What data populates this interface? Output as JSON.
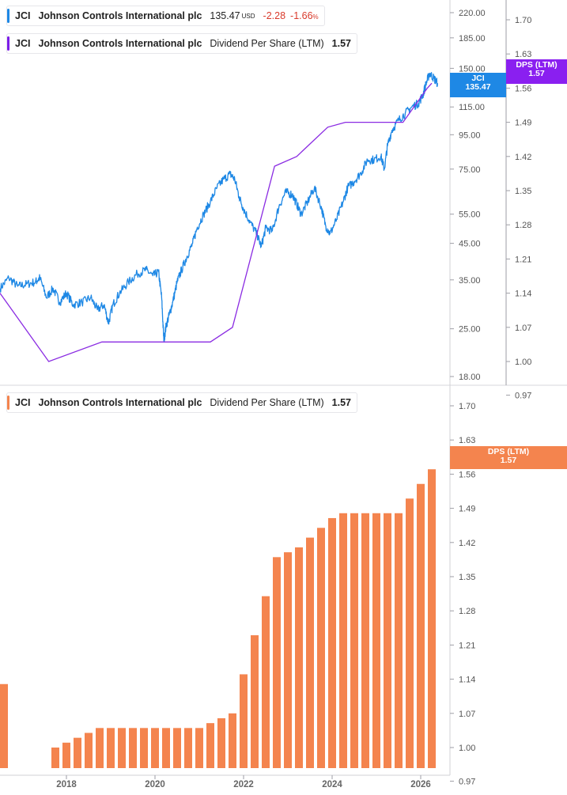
{
  "top_legend": {
    "price": {
      "ticker": "JCI",
      "company": "Johnson Controls International plc",
      "value": "135.47",
      "unit": "USD",
      "change": "-2.28",
      "change_pct": "-1.66",
      "pct_symbol": "%",
      "color": "#1e88e5"
    },
    "dps": {
      "ticker": "JCI",
      "company": "Johnson Controls International plc",
      "metric": "Dividend Per Share (LTM)",
      "value": "1.57",
      "color": "#7c1ee8"
    }
  },
  "bottom_legend": {
    "ticker": "JCI",
    "company": "Johnson Controls International plc",
    "metric": "Dividend Per Share (LTM)",
    "value": "1.57",
    "color": "#f4844e"
  },
  "tags": {
    "price": {
      "name": "JCI",
      "value": "135.47",
      "color": "#1e88e5"
    },
    "dps_top": {
      "name": "DPS (LTM)",
      "value": "1.57",
      "color": "#8a1ff0"
    },
    "dps_bottom": {
      "name": "DPS (LTM)",
      "value": "1.57",
      "color": "#f4844e"
    }
  },
  "chart_data": [
    {
      "type": "line",
      "scale": "log",
      "axis": "left-inner",
      "ticks": [
        "220.00",
        "185.00",
        "150.00",
        "115.00",
        "95.00",
        "75.00",
        "55.00",
        "45.00",
        "35.00",
        "25.00",
        "18.00"
      ],
      "ylim": [
        17.5,
        245
      ],
      "x_range": [
        2016.5,
        2026.5
      ],
      "series": [
        {
          "name": "JCI",
          "color": "#1e88e5",
          "points": [
            [
              2016.5,
              33.0
            ],
            [
              2016.7,
              35.5
            ],
            [
              2016.9,
              33.5
            ],
            [
              2017.1,
              34.0
            ],
            [
              2017.3,
              34.5
            ],
            [
              2017.4,
              35.5
            ],
            [
              2017.55,
              31.0
            ],
            [
              2017.7,
              33.0
            ],
            [
              2017.85,
              30.0
            ],
            [
              2018.0,
              32.0
            ],
            [
              2018.15,
              29.5
            ],
            [
              2018.35,
              30.0
            ],
            [
              2018.55,
              31.0
            ],
            [
              2018.7,
              28.5
            ],
            [
              2018.85,
              29.5
            ],
            [
              2018.95,
              26.0
            ],
            [
              2019.05,
              29.5
            ],
            [
              2019.2,
              32.0
            ],
            [
              2019.4,
              34.5
            ],
            [
              2019.6,
              36.5
            ],
            [
              2019.8,
              37.5
            ],
            [
              2019.95,
              36.0
            ],
            [
              2020.08,
              37.0
            ],
            [
              2020.15,
              31.0
            ],
            [
              2020.2,
              23.0
            ],
            [
              2020.25,
              25.5
            ],
            [
              2020.32,
              27.5
            ],
            [
              2020.4,
              30.0
            ],
            [
              2020.5,
              34.5
            ],
            [
              2020.6,
              37.5
            ],
            [
              2020.72,
              41.0
            ],
            [
              2020.85,
              45.0
            ],
            [
              2020.95,
              50.0
            ],
            [
              2021.1,
              55.0
            ],
            [
              2021.25,
              60.0
            ],
            [
              2021.4,
              66.0
            ],
            [
              2021.55,
              70.0
            ],
            [
              2021.7,
              72.5
            ],
            [
              2021.8,
              70.0
            ],
            [
              2021.9,
              62.0
            ],
            [
              2022.0,
              57.0
            ],
            [
              2022.15,
              52.0
            ],
            [
              2022.3,
              48.0
            ],
            [
              2022.4,
              44.0
            ],
            [
              2022.5,
              50.0
            ],
            [
              2022.65,
              49.0
            ],
            [
              2022.8,
              58.0
            ],
            [
              2022.95,
              64.0
            ],
            [
              2023.1,
              63.0
            ],
            [
              2023.2,
              59.0
            ],
            [
              2023.3,
              55.0
            ],
            [
              2023.45,
              60.0
            ],
            [
              2023.6,
              66.0
            ],
            [
              2023.75,
              58.0
            ],
            [
              2023.85,
              51.0
            ],
            [
              2023.95,
              48.0
            ],
            [
              2024.1,
              53.0
            ],
            [
              2024.25,
              60.0
            ],
            [
              2024.35,
              66.0
            ],
            [
              2024.5,
              69.0
            ],
            [
              2024.65,
              73.0
            ],
            [
              2024.8,
              80.0
            ],
            [
              2024.95,
              80.0
            ],
            [
              2025.1,
              82.0
            ],
            [
              2025.18,
              75.0
            ],
            [
              2025.25,
              88.0
            ],
            [
              2025.35,
              98.0
            ],
            [
              2025.5,
              105.0
            ],
            [
              2025.65,
              110.0
            ],
            [
              2025.8,
              115.0
            ],
            [
              2025.95,
              118.0
            ],
            [
              2026.05,
              125.0
            ],
            [
              2026.12,
              135.0
            ],
            [
              2026.2,
              145.0
            ],
            [
              2026.3,
              140.0
            ],
            [
              2026.38,
              135.47
            ]
          ]
        }
      ]
    },
    {
      "type": "line",
      "axis": "right",
      "ticks": [
        "1.70",
        "1.63",
        "1.56",
        "1.49",
        "1.42",
        "1.35",
        "1.28",
        "1.21",
        "1.14",
        "1.07",
        "1.00",
        "0.97"
      ],
      "ylim": [
        0.97,
        1.7
      ],
      "x_range": [
        2016.5,
        2026.5
      ],
      "series": [
        {
          "name": "Dividend Per Share (LTM)",
          "color": "#8a2be2",
          "points": [
            [
              2016.5,
              1.14
            ],
            [
              2017.6,
              1.0
            ],
            [
              2018.8,
              1.04
            ],
            [
              2020.5,
              1.04
            ],
            [
              2021.25,
              1.04
            ],
            [
              2021.75,
              1.07
            ],
            [
              2022.7,
              1.4
            ],
            [
              2023.2,
              1.42
            ],
            [
              2023.9,
              1.48
            ],
            [
              2024.3,
              1.49
            ],
            [
              2025.0,
              1.49
            ],
            [
              2025.6,
              1.49
            ],
            [
              2026.15,
              1.56
            ],
            [
              2026.25,
              1.57
            ]
          ]
        }
      ]
    },
    {
      "type": "bar",
      "axis": "right",
      "ticks": [
        "1.70",
        "1.63",
        "1.56",
        "1.49",
        "1.42",
        "1.35",
        "1.28",
        "1.21",
        "1.14",
        "1.07",
        "1.00",
        "0.97"
      ],
      "ylim": [
        0.97,
        1.7
      ],
      "x_ticks": [
        "2018",
        "2020",
        "2022",
        "2024",
        "2026"
      ],
      "x_tick_values": [
        2018,
        2020,
        2022,
        2024,
        2026
      ],
      "x_range": [
        2016.5,
        2026.5
      ],
      "series": [
        {
          "name": "Dividend Per Share (LTM)",
          "color": "#f4844e",
          "points": [
            [
              2016.5,
              1.13
            ],
            [
              2017.75,
              1.0
            ],
            [
              2018.0,
              1.01
            ],
            [
              2018.25,
              1.02
            ],
            [
              2018.5,
              1.03
            ],
            [
              2018.75,
              1.04
            ],
            [
              2019.0,
              1.04
            ],
            [
              2019.25,
              1.04
            ],
            [
              2019.5,
              1.04
            ],
            [
              2019.75,
              1.04
            ],
            [
              2020.0,
              1.04
            ],
            [
              2020.25,
              1.04
            ],
            [
              2020.5,
              1.04
            ],
            [
              2020.75,
              1.04
            ],
            [
              2021.0,
              1.04
            ],
            [
              2021.25,
              1.05
            ],
            [
              2021.5,
              1.06
            ],
            [
              2021.75,
              1.07
            ],
            [
              2022.0,
              1.15
            ],
            [
              2022.25,
              1.23
            ],
            [
              2022.5,
              1.31
            ],
            [
              2022.75,
              1.39
            ],
            [
              2023.0,
              1.4
            ],
            [
              2023.25,
              1.41
            ],
            [
              2023.5,
              1.43
            ],
            [
              2023.75,
              1.45
            ],
            [
              2024.0,
              1.47
            ],
            [
              2024.25,
              1.48
            ],
            [
              2024.5,
              1.48
            ],
            [
              2024.75,
              1.48
            ],
            [
              2025.0,
              1.48
            ],
            [
              2025.25,
              1.48
            ],
            [
              2025.5,
              1.48
            ],
            [
              2025.75,
              1.51
            ],
            [
              2026.0,
              1.54
            ],
            [
              2026.25,
              1.57
            ]
          ]
        }
      ]
    }
  ]
}
